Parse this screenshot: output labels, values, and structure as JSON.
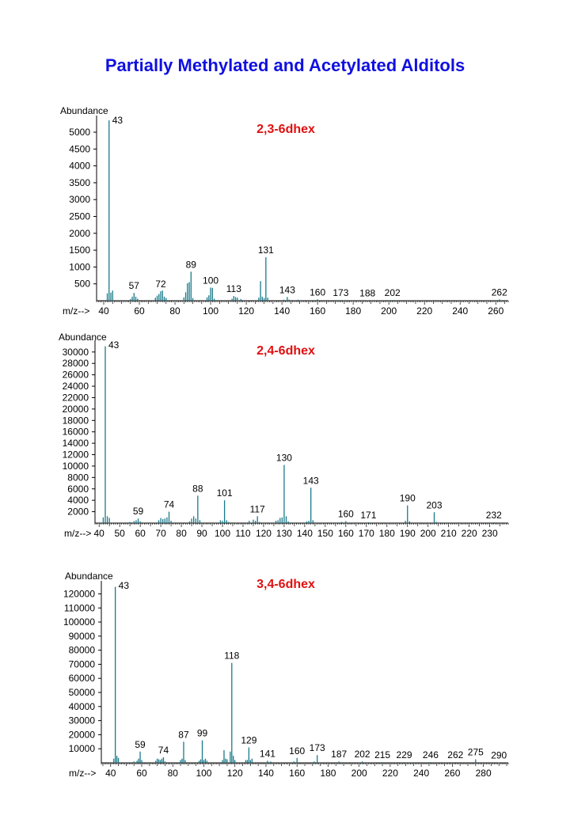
{
  "page": {
    "title": "Partially Methylated and Acetylated Alditols"
  },
  "colors": {
    "title": "#1010e0",
    "spectrum_title": "#e01010",
    "peaks": "#1a7a8a",
    "axis": "#000000"
  },
  "chart_data": [
    {
      "type": "bar",
      "title": "2,3-6dhex",
      "ylabel": "Abundance",
      "xlabel": "m/z-->",
      "xlim": [
        36,
        267
      ],
      "ylim": [
        0,
        5400
      ],
      "xticks": [
        40,
        60,
        80,
        100,
        120,
        140,
        160,
        180,
        200,
        220,
        240,
        260
      ],
      "yticks": [
        500,
        1000,
        1500,
        2000,
        2500,
        3000,
        3500,
        4000,
        4500,
        5000
      ],
      "peaks": [
        [
          42,
          220
        ],
        [
          43,
          5350
        ],
        [
          44,
          240
        ],
        [
          45,
          300
        ],
        [
          55,
          50
        ],
        [
          56,
          120
        ],
        [
          57,
          230
        ],
        [
          58,
          120
        ],
        [
          59,
          60
        ],
        [
          69,
          90
        ],
        [
          70,
          150
        ],
        [
          71,
          200
        ],
        [
          72,
          280
        ],
        [
          73,
          300
        ],
        [
          74,
          120
        ],
        [
          75,
          80
        ],
        [
          85,
          100
        ],
        [
          86,
          250
        ],
        [
          87,
          520
        ],
        [
          88,
          550
        ],
        [
          89,
          860
        ],
        [
          90,
          80
        ],
        [
          98,
          100
        ],
        [
          99,
          160
        ],
        [
          100,
          390
        ],
        [
          101,
          380
        ],
        [
          102,
          60
        ],
        [
          112,
          60
        ],
        [
          113,
          140
        ],
        [
          114,
          110
        ],
        [
          115,
          90
        ],
        [
          117,
          50
        ],
        [
          127,
          90
        ],
        [
          128,
          580
        ],
        [
          129,
          120
        ],
        [
          130,
          80
        ],
        [
          131,
          1290
        ],
        [
          132,
          90
        ],
        [
          141,
          30
        ],
        [
          143,
          110
        ],
        [
          144,
          30
        ],
        [
          149,
          30
        ],
        [
          160,
          40
        ],
        [
          173,
          20
        ],
        [
          188,
          15
        ],
        [
          202,
          20
        ],
        [
          262,
          40
        ]
      ],
      "labels": [
        {
          "mz": 43,
          "text": "43"
        },
        {
          "mz": 57,
          "text": "57"
        },
        {
          "mz": 72,
          "text": "72"
        },
        {
          "mz": 89,
          "text": "89"
        },
        {
          "mz": 100,
          "text": "100"
        },
        {
          "mz": 113,
          "text": "113"
        },
        {
          "mz": 131,
          "text": "131"
        },
        {
          "mz": 143,
          "text": "143"
        },
        {
          "mz": 160,
          "text": "160"
        },
        {
          "mz": 173,
          "text": "173"
        },
        {
          "mz": 188,
          "text": "188"
        },
        {
          "mz": 202,
          "text": "202"
        },
        {
          "mz": 262,
          "text": "262"
        }
      ]
    },
    {
      "type": "bar",
      "title": "2,4-6dhex",
      "ylabel": "Abundance",
      "xlabel": "m/z-->",
      "xlim": [
        38,
        239
      ],
      "ylim": [
        0,
        31500
      ],
      "xticks": [
        40,
        50,
        60,
        70,
        80,
        90,
        100,
        110,
        120,
        130,
        140,
        150,
        160,
        170,
        180,
        190,
        200,
        210,
        220,
        230
      ],
      "yticks": [
        2000,
        4000,
        6000,
        8000,
        10000,
        12000,
        14000,
        16000,
        18000,
        20000,
        22000,
        24000,
        26000,
        28000,
        30000
      ],
      "peaks": [
        [
          42,
          1000
        ],
        [
          43,
          31000
        ],
        [
          44,
          1200
        ],
        [
          45,
          900
        ],
        [
          55,
          200
        ],
        [
          57,
          350
        ],
        [
          58,
          500
        ],
        [
          59,
          800
        ],
        [
          60,
          300
        ],
        [
          69,
          500
        ],
        [
          70,
          900
        ],
        [
          71,
          700
        ],
        [
          72,
          800
        ],
        [
          73,
          1000
        ],
        [
          74,
          2000
        ],
        [
          75,
          400
        ],
        [
          84,
          300
        ],
        [
          85,
          800
        ],
        [
          86,
          1200
        ],
        [
          87,
          800
        ],
        [
          88,
          4800
        ],
        [
          89,
          500
        ],
        [
          99,
          500
        ],
        [
          100,
          400
        ],
        [
          101,
          4000
        ],
        [
          102,
          500
        ],
        [
          103,
          200
        ],
        [
          113,
          400
        ],
        [
          115,
          600
        ],
        [
          116,
          400
        ],
        [
          117,
          1200
        ],
        [
          118,
          200
        ],
        [
          126,
          400
        ],
        [
          127,
          500
        ],
        [
          128,
          900
        ],
        [
          129,
          1000
        ],
        [
          130,
          10200
        ],
        [
          131,
          1200
        ],
        [
          132,
          300
        ],
        [
          141,
          300
        ],
        [
          142,
          400
        ],
        [
          143,
          6200
        ],
        [
          144,
          500
        ],
        [
          155,
          100
        ],
        [
          158,
          200
        ],
        [
          160,
          350
        ],
        [
          171,
          150
        ],
        [
          189,
          400
        ],
        [
          190,
          3100
        ],
        [
          191,
          300
        ],
        [
          203,
          1900
        ],
        [
          204,
          200
        ],
        [
          232,
          150
        ]
      ],
      "labels": [
        {
          "mz": 43,
          "text": "43"
        },
        {
          "mz": 59,
          "text": "59"
        },
        {
          "mz": 74,
          "text": "74"
        },
        {
          "mz": 88,
          "text": "88"
        },
        {
          "mz": 101,
          "text": "101"
        },
        {
          "mz": 117,
          "text": "117"
        },
        {
          "mz": 130,
          "text": "130"
        },
        {
          "mz": 143,
          "text": "143"
        },
        {
          "mz": 160,
          "text": "160"
        },
        {
          "mz": 171,
          "text": "171"
        },
        {
          "mz": 190,
          "text": "190"
        },
        {
          "mz": 203,
          "text": "203"
        },
        {
          "mz": 232,
          "text": "232"
        }
      ]
    },
    {
      "type": "bar",
      "title": "3,4-6dhex",
      "ylabel": "Abundance",
      "xlabel": "m/z-->",
      "xlim": [
        34,
        296
      ],
      "ylim": [
        0,
        127000
      ],
      "xticks": [
        40,
        60,
        80,
        100,
        120,
        140,
        160,
        180,
        200,
        220,
        240,
        260,
        280
      ],
      "yticks": [
        10000,
        20000,
        30000,
        40000,
        50000,
        60000,
        70000,
        80000,
        90000,
        100000,
        110000,
        120000
      ],
      "peaks": [
        [
          42,
          3000
        ],
        [
          43,
          125000
        ],
        [
          44,
          5000
        ],
        [
          45,
          3500
        ],
        [
          55,
          1000
        ],
        [
          57,
          1500
        ],
        [
          58,
          3000
        ],
        [
          59,
          8000
        ],
        [
          60,
          2000
        ],
        [
          69,
          1500
        ],
        [
          70,
          3000
        ],
        [
          71,
          2500
        ],
        [
          72,
          2000
        ],
        [
          73,
          3000
        ],
        [
          74,
          4000
        ],
        [
          75,
          1000
        ],
        [
          85,
          2000
        ],
        [
          86,
          3000
        ],
        [
          87,
          15000
        ],
        [
          88,
          2000
        ],
        [
          97,
          1500
        ],
        [
          98,
          2500
        ],
        [
          99,
          16000
        ],
        [
          100,
          2000
        ],
        [
          101,
          3000
        ],
        [
          102,
          1500
        ],
        [
          112,
          2000
        ],
        [
          113,
          9000
        ],
        [
          114,
          3000
        ],
        [
          115,
          2500
        ],
        [
          117,
          8000
        ],
        [
          118,
          71000
        ],
        [
          119,
          5000
        ],
        [
          120,
          2000
        ],
        [
          127,
          2000
        ],
        [
          128,
          2000
        ],
        [
          129,
          11000
        ],
        [
          130,
          2000
        ],
        [
          131,
          3000
        ],
        [
          141,
          1500
        ],
        [
          143,
          1000
        ],
        [
          158,
          1000
        ],
        [
          160,
          3500
        ],
        [
          171,
          1000
        ],
        [
          173,
          5500
        ],
        [
          187,
          1000
        ],
        [
          202,
          1000
        ],
        [
          215,
          500
        ],
        [
          229,
          500
        ],
        [
          246,
          500
        ],
        [
          262,
          500
        ],
        [
          275,
          2500
        ],
        [
          290,
          300
        ]
      ],
      "labels": [
        {
          "mz": 43,
          "text": "43"
        },
        {
          "mz": 59,
          "text": "59"
        },
        {
          "mz": 74,
          "text": "74"
        },
        {
          "mz": 87,
          "text": "87"
        },
        {
          "mz": 99,
          "text": "99"
        },
        {
          "mz": 118,
          "text": "118"
        },
        {
          "mz": 129,
          "text": "129"
        },
        {
          "mz": 141,
          "text": "141"
        },
        {
          "mz": 160,
          "text": "160"
        },
        {
          "mz": 173,
          "text": "173"
        },
        {
          "mz": 187,
          "text": "187"
        },
        {
          "mz": 202,
          "text": "202"
        },
        {
          "mz": 215,
          "text": "215"
        },
        {
          "mz": 229,
          "text": "229"
        },
        {
          "mz": 246,
          "text": "246"
        },
        {
          "mz": 262,
          "text": "262"
        },
        {
          "mz": 275,
          "text": "275"
        },
        {
          "mz": 290,
          "text": "290"
        }
      ]
    }
  ]
}
